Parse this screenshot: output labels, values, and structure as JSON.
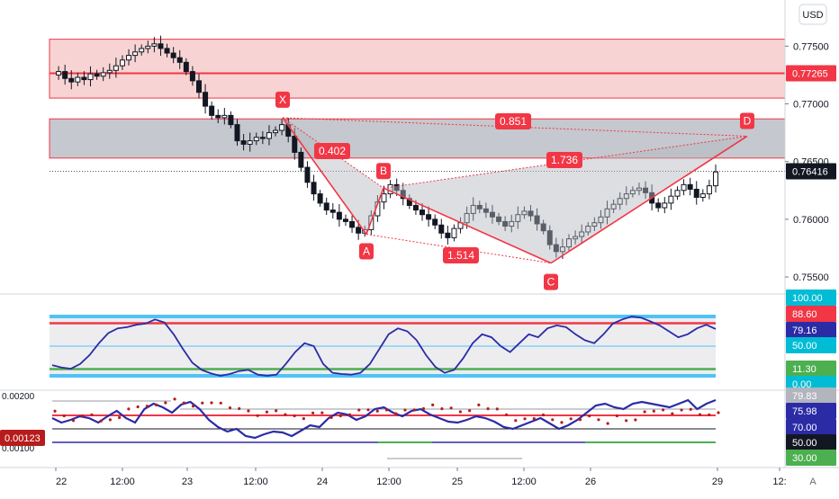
{
  "header": {
    "currency_label": "USD"
  },
  "colors": {
    "up": "#ffffff",
    "down": "#131722",
    "resistance_fill": "#f4c6c4",
    "resistance_line": "#f23645",
    "support_fill": "#b2b5be",
    "pattern_line": "#f23645",
    "pattern_fill": "#b2b5be",
    "osc_blue": "#2b2ba6",
    "osc_cyan": "#4fc3f7",
    "osc_red": "#f23645",
    "osc_green": "#4caf50",
    "badge_red": "#f23645",
    "badge_dark": "#131722",
    "badge_blue": "#2b2ba6",
    "badge_cyan": "#00bcd4",
    "badge_green": "#4caf50"
  },
  "chart_data": [
    {
      "type": "candlestick",
      "pane": "price",
      "x_tick_labels": [
        "22",
        "12:00",
        "23",
        "12:00",
        "24",
        "12:00",
        "25",
        "12:00",
        "26",
        "29",
        "12:",
        "A"
      ],
      "y_ticks": [
        0.775,
        0.77,
        0.765,
        0.76,
        0.755
      ],
      "y_tick_labels": [
        "0.77500",
        "0.77000",
        "0.76500",
        "0.76000",
        "0.75500"
      ],
      "ylim": [
        0.7536,
        0.779
      ],
      "last_price": 0.76416,
      "last_price_label": "0.76416",
      "resistance_level": 0.77265,
      "resistance_label": "0.77265",
      "resistance_zone": [
        0.7705,
        0.7756
      ],
      "support_zone": [
        0.7653,
        0.7687
      ],
      "close_series": [
        0.7725,
        0.7728,
        0.7722,
        0.7719,
        0.7723,
        0.7721,
        0.7726,
        0.7724,
        0.7727,
        0.7729,
        0.7733,
        0.7738,
        0.7742,
        0.7745,
        0.7748,
        0.775,
        0.7752,
        0.7748,
        0.7744,
        0.774,
        0.7736,
        0.7728,
        0.772,
        0.771,
        0.7698,
        0.769,
        0.7688,
        0.769,
        0.7682,
        0.7668,
        0.7665,
        0.7668,
        0.7671,
        0.767,
        0.7675,
        0.7677,
        0.7682,
        0.7672,
        0.7658,
        0.7645,
        0.7632,
        0.7622,
        0.7614,
        0.7608,
        0.7606,
        0.76,
        0.7598,
        0.7593,
        0.7588,
        0.7591,
        0.7603,
        0.7615,
        0.7622,
        0.763,
        0.7625,
        0.7618,
        0.7612,
        0.7608,
        0.7604,
        0.76,
        0.7595,
        0.7588,
        0.7584,
        0.7592,
        0.7597,
        0.7605,
        0.7612,
        0.7609,
        0.7606,
        0.7602,
        0.7598,
        0.7594,
        0.7598,
        0.7604,
        0.7607,
        0.7603,
        0.7596,
        0.759,
        0.7578,
        0.7572,
        0.7576,
        0.7583,
        0.7585,
        0.7589,
        0.7594,
        0.7597,
        0.7602,
        0.7609,
        0.7613,
        0.7618,
        0.7622,
        0.7625,
        0.7627,
        0.7623,
        0.7614,
        0.761,
        0.7614,
        0.762,
        0.7625,
        0.763,
        0.7626,
        0.7619,
        0.7622,
        0.7629,
        0.7641
      ],
      "patterns": [
        {
          "label": "X",
          "price": 0.7688
        },
        {
          "label": "A",
          "price": 0.7587
        },
        {
          "label": "B",
          "price": 0.7627
        },
        {
          "label": "C",
          "price": 0.7562
        },
        {
          "label": "D",
          "price": 0.7672
        }
      ],
      "ratios": [
        "0.402",
        "0.851",
        "1.736",
        "1.514"
      ]
    },
    {
      "type": "line",
      "pane": "oscillator",
      "ylim": [
        0,
        100
      ],
      "levels": [
        {
          "value": 100.0,
          "label": "100.00",
          "color": "cyan"
        },
        {
          "value": 88.6,
          "label": "88.60",
          "color": "red"
        },
        {
          "value": 79.16,
          "label": "79.16",
          "color": "blue"
        },
        {
          "value": 50.0,
          "label": "50.00",
          "color": "cyan"
        },
        {
          "value": 11.3,
          "label": "11.30",
          "color": "green"
        },
        {
          "value": 0.0,
          "label": "0.00",
          "color": "cyan"
        }
      ],
      "values": [
        18,
        14,
        12,
        20,
        35,
        55,
        72,
        80,
        82,
        86,
        88,
        95,
        90,
        70,
        45,
        22,
        10,
        4,
        0,
        3,
        8,
        10,
        2,
        0,
        2,
        20,
        40,
        55,
        50,
        20,
        5,
        3,
        2,
        5,
        20,
        45,
        70,
        80,
        75,
        60,
        35,
        15,
        5,
        10,
        30,
        55,
        70,
        65,
        50,
        40,
        55,
        70,
        65,
        80,
        85,
        82,
        70,
        60,
        55,
        70,
        88,
        95,
        100,
        98,
        92,
        85,
        75,
        65,
        70,
        80,
        86,
        79
      ]
    },
    {
      "type": "line",
      "pane": "oscillator-2",
      "y_tick_labels": [
        "0.00200",
        "0.00100"
      ],
      "value_label": "0.00123",
      "levels": [
        {
          "value": 79.83,
          "label": "79.83",
          "color": "gray"
        },
        {
          "value": 75.98,
          "label": "75.98",
          "color": "blue"
        },
        {
          "value": 70.0,
          "label": "70.00",
          "color": "blue"
        },
        {
          "value": 50.0,
          "label": "50.00",
          "color": "dark"
        },
        {
          "value": 30.0,
          "label": "30.00",
          "color": "green"
        }
      ],
      "values": [
        60,
        55,
        58,
        62,
        60,
        55,
        62,
        68,
        60,
        55,
        70,
        76,
        72,
        66,
        75,
        78,
        70,
        58,
        50,
        45,
        48,
        40,
        38,
        42,
        45,
        44,
        40,
        46,
        52,
        50,
        60,
        66,
        64,
        58,
        62,
        70,
        72,
        66,
        62,
        68,
        70,
        64,
        60,
        56,
        55,
        58,
        62,
        60,
        56,
        50,
        48,
        52,
        56,
        60,
        54,
        48,
        52,
        58,
        66,
        74,
        76,
        72,
        70,
        76,
        78,
        76,
        74,
        72,
        76,
        80,
        70,
        76,
        80
      ]
    }
  ]
}
